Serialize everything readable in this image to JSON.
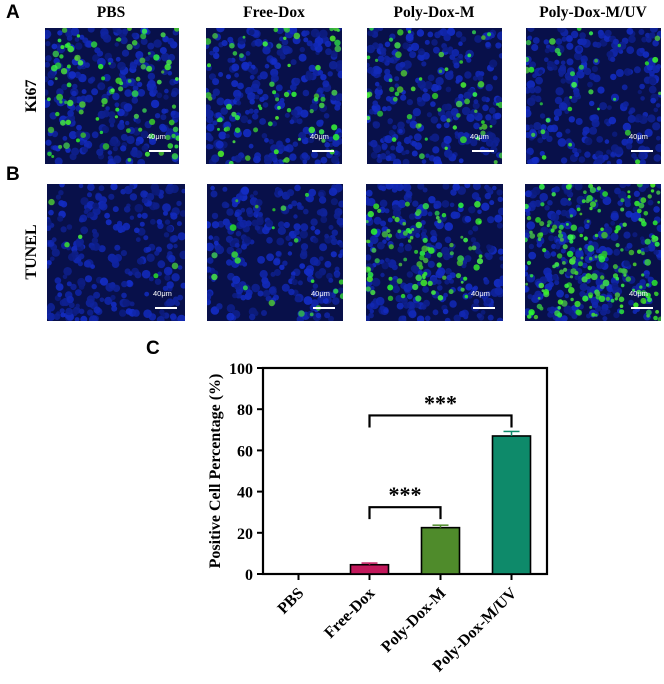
{
  "panel_labels": {
    "a": "A",
    "b": "B",
    "c": "C"
  },
  "columns": [
    "PBS",
    "Free-Dox",
    "Poly-Dox-M",
    "Poly-Dox-M/UV"
  ],
  "rows": [
    "Ki67",
    "TUNEL"
  ],
  "scale_bar_text": "40μm",
  "stain_colors": {
    "nuclei": "#1a2fc8",
    "background": "#08104a",
    "positive": "#3cf23c"
  },
  "positive_levels": {
    "Ki67": [
      0.35,
      0.25,
      0.22,
      0.12
    ],
    "TUNEL": [
      0.02,
      0.08,
      0.35,
      0.72
    ]
  },
  "chart_data": {
    "type": "bar",
    "categories": [
      "PBS",
      "Free-Dox",
      "Poly-Dox-M",
      "Poly-Dox-M/UV"
    ],
    "values": [
      0,
      4.5,
      22.5,
      67
    ],
    "errors": [
      0,
      0.8,
      1.2,
      2.2
    ],
    "colors": [
      "#1b5e3b",
      "#c2185b",
      "#4f8b2b",
      "#0e8a6a"
    ],
    "ylabel": "Positive Cell Percentage (%)",
    "ylim": [
      0,
      100
    ],
    "yticks": [
      0,
      20,
      40,
      60,
      80,
      100
    ],
    "significance": [
      {
        "from": "Free-Dox",
        "to": "Poly-Dox-M",
        "label": "***"
      },
      {
        "from": "Free-Dox",
        "to": "Poly-Dox-M/UV",
        "label": "***"
      }
    ]
  }
}
